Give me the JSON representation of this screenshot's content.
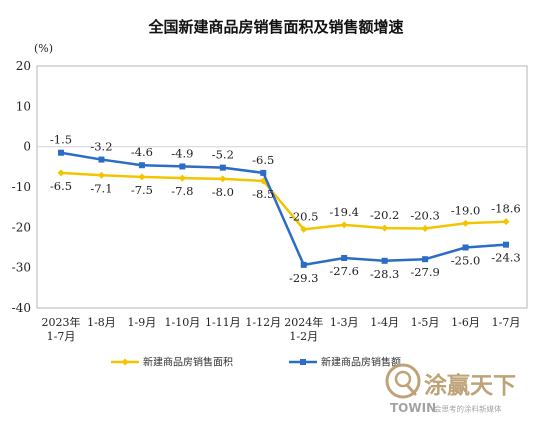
{
  "chart_data": {
    "type": "line",
    "title": "全国新建商品房销售面积及销售额增速",
    "unit": "(%)",
    "ylim": [
      -40,
      20
    ],
    "yticks": [
      20,
      10,
      0,
      -10,
      -20,
      -30,
      -40
    ],
    "categories": [
      [
        "2023年",
        "1-7月"
      ],
      [
        "1-8月"
      ],
      [
        "1-9月"
      ],
      [
        "1-10月"
      ],
      [
        "1-11月"
      ],
      [
        "1-12月"
      ],
      [
        "2024年",
        "1-2月"
      ],
      [
        "1-3月"
      ],
      [
        "1-4月"
      ],
      [
        "1-5月"
      ],
      [
        "1-6月"
      ],
      [
        "1-7月"
      ]
    ],
    "series": [
      {
        "name": "新建商品房销售面积",
        "color": "#f5c400",
        "values": [
          -6.5,
          -7.1,
          -7.5,
          -7.8,
          -8.0,
          -8.5,
          -20.5,
          -19.4,
          -20.2,
          -20.3,
          -19.0,
          -18.6
        ],
        "labels": [
          "-6.5",
          "-7.1",
          "-7.5",
          "-7.8",
          "-8.0",
          "-8.5",
          "-20.5",
          "-19.4",
          "-20.2",
          "-20.3",
          "-19.0",
          "-18.6"
        ]
      },
      {
        "name": "新建商品房销售额",
        "color": "#2b6cc4",
        "values": [
          -1.5,
          -3.2,
          -4.6,
          -4.9,
          -5.2,
          -6.5,
          -29.3,
          -27.6,
          -28.3,
          -27.9,
          -25.0,
          -24.3
        ],
        "labels": [
          "-1.5",
          "-3.2",
          "-4.6",
          "-4.9",
          "-5.2",
          "-6.5",
          "-29.3",
          "-27.6",
          "-28.3",
          "-27.9",
          "-25.0",
          "-24.3"
        ]
      }
    ],
    "legend_position": "bottom"
  },
  "watermark": {
    "name_cn": "涂赢天下",
    "name_en": "TOWIN",
    "tagline": "会思考的涂料新媒体",
    "icon": "towin-logo-icon"
  }
}
